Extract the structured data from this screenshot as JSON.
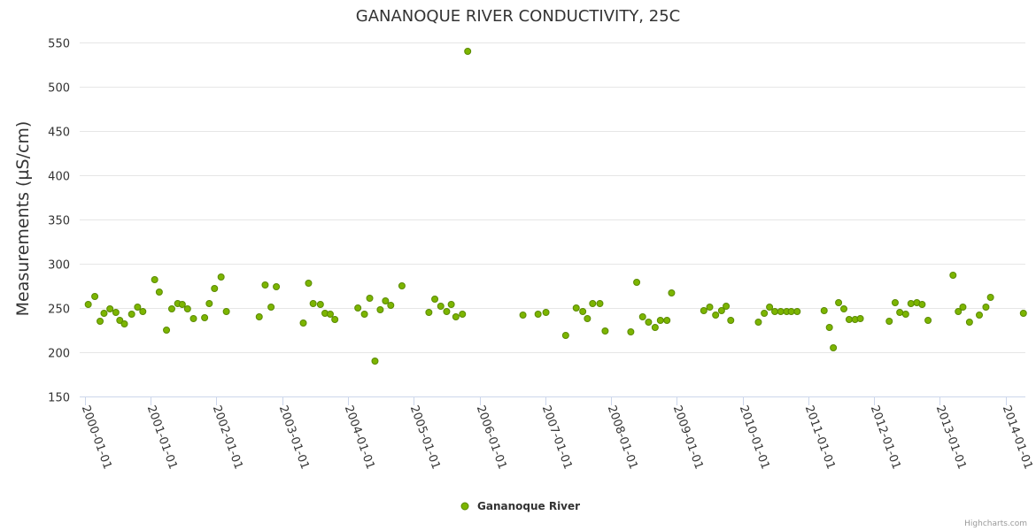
{
  "chart_data": {
    "type": "scatter",
    "title": "GANANOQUE RIVER CONDUCTIVITY, 25C",
    "xlabel": "",
    "ylabel": "Measurements (µS/cm)",
    "ylim": [
      150,
      550
    ],
    "yticks": [
      150,
      200,
      250,
      300,
      350,
      400,
      450,
      500,
      550
    ],
    "xlim": [
      1999.92,
      2014.3
    ],
    "xticks": [
      {
        "label": "2000-01-01",
        "value": 2000.0
      },
      {
        "label": "2001-01-01",
        "value": 2001.0
      },
      {
        "label": "2002-01-01",
        "value": 2002.0
      },
      {
        "label": "2003-01-01",
        "value": 2003.0
      },
      {
        "label": "2004-01-01",
        "value": 2004.0
      },
      {
        "label": "2005-01-01",
        "value": 2005.0
      },
      {
        "label": "2006-01-01",
        "value": 2006.0
      },
      {
        "label": "2007-01-01",
        "value": 2007.0
      },
      {
        "label": "2008-01-01",
        "value": 2008.0
      },
      {
        "label": "2009-01-01",
        "value": 2009.0
      },
      {
        "label": "2010-01-01",
        "value": 2010.0
      },
      {
        "label": "2011-01-01",
        "value": 2011.0
      },
      {
        "label": "2012-01-01",
        "value": 2012.0
      },
      {
        "label": "2013-01-01",
        "value": 2013.0
      },
      {
        "label": "2014-01-01",
        "value": 2014.0
      }
    ],
    "grid": true,
    "legend_position": "bottom-center",
    "series": [
      {
        "name": "Gananoque River",
        "color": "#7cb500",
        "stroke": "#5a8a00",
        "points": [
          [
            2000.05,
            254
          ],
          [
            2000.15,
            263
          ],
          [
            2000.23,
            235
          ],
          [
            2000.29,
            244
          ],
          [
            2000.38,
            249
          ],
          [
            2000.47,
            245
          ],
          [
            2000.53,
            236
          ],
          [
            2000.6,
            232
          ],
          [
            2000.71,
            243
          ],
          [
            2000.8,
            251
          ],
          [
            2000.88,
            246
          ],
          [
            2001.06,
            282
          ],
          [
            2001.13,
            268
          ],
          [
            2001.24,
            225
          ],
          [
            2001.32,
            249
          ],
          [
            2001.41,
            255
          ],
          [
            2001.48,
            254
          ],
          [
            2001.56,
            249
          ],
          [
            2001.65,
            238
          ],
          [
            2001.82,
            239
          ],
          [
            2001.89,
            255
          ],
          [
            2001.97,
            272
          ],
          [
            2002.07,
            285
          ],
          [
            2002.15,
            246
          ],
          [
            2002.65,
            240
          ],
          [
            2002.74,
            276
          ],
          [
            2002.83,
            251
          ],
          [
            2002.91,
            274
          ],
          [
            2003.32,
            233
          ],
          [
            2003.4,
            278
          ],
          [
            2003.47,
            255
          ],
          [
            2003.58,
            254
          ],
          [
            2003.65,
            244
          ],
          [
            2003.73,
            243
          ],
          [
            2003.8,
            237
          ],
          [
            2004.15,
            250
          ],
          [
            2004.25,
            243
          ],
          [
            2004.33,
            261
          ],
          [
            2004.41,
            190
          ],
          [
            2004.49,
            248
          ],
          [
            2004.57,
            258
          ],
          [
            2004.65,
            253
          ],
          [
            2004.82,
            275
          ],
          [
            2005.23,
            245
          ],
          [
            2005.32,
            260
          ],
          [
            2005.41,
            252
          ],
          [
            2005.5,
            246
          ],
          [
            2005.57,
            254
          ],
          [
            2005.64,
            240
          ],
          [
            2005.74,
            243
          ],
          [
            2005.82,
            540
          ],
          [
            2006.66,
            242
          ],
          [
            2006.89,
            243
          ],
          [
            2007.01,
            245
          ],
          [
            2007.31,
            219
          ],
          [
            2007.47,
            250
          ],
          [
            2007.57,
            246
          ],
          [
            2007.64,
            238
          ],
          [
            2007.72,
            255
          ],
          [
            2007.83,
            255
          ],
          [
            2007.91,
            224
          ],
          [
            2008.3,
            223
          ],
          [
            2008.39,
            279
          ],
          [
            2008.48,
            240
          ],
          [
            2008.57,
            234
          ],
          [
            2008.67,
            228
          ],
          [
            2008.75,
            236
          ],
          [
            2008.85,
            236
          ],
          [
            2008.92,
            267
          ],
          [
            2009.41,
            247
          ],
          [
            2009.5,
            251
          ],
          [
            2009.59,
            242
          ],
          [
            2009.68,
            247
          ],
          [
            2009.75,
            252
          ],
          [
            2009.82,
            236
          ],
          [
            2010.24,
            234
          ],
          [
            2010.33,
            244
          ],
          [
            2010.41,
            251
          ],
          [
            2010.49,
            246
          ],
          [
            2010.58,
            246
          ],
          [
            2010.67,
            246
          ],
          [
            2010.74,
            246
          ],
          [
            2010.83,
            246
          ],
          [
            2011.24,
            247
          ],
          [
            2011.32,
            228
          ],
          [
            2011.38,
            205
          ],
          [
            2011.46,
            256
          ],
          [
            2011.54,
            249
          ],
          [
            2011.62,
            237
          ],
          [
            2011.71,
            237
          ],
          [
            2011.79,
            238
          ],
          [
            2012.23,
            235
          ],
          [
            2012.32,
            256
          ],
          [
            2012.39,
            245
          ],
          [
            2012.48,
            243
          ],
          [
            2012.56,
            255
          ],
          [
            2012.65,
            256
          ],
          [
            2012.73,
            254
          ],
          [
            2012.82,
            236
          ],
          [
            2013.2,
            287
          ],
          [
            2013.28,
            246
          ],
          [
            2013.35,
            251
          ],
          [
            2013.45,
            234
          ],
          [
            2013.6,
            242
          ],
          [
            2013.7,
            251
          ],
          [
            2013.77,
            262
          ],
          [
            2014.27,
            244
          ]
        ]
      }
    ]
  },
  "legend": {
    "label": "Gananoque River"
  },
  "credits": "Highcharts.com"
}
